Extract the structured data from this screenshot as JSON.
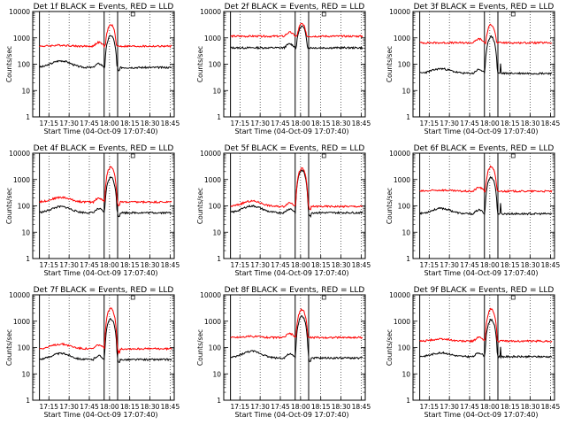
{
  "figure": {
    "xlabel": "Start Time (04-Oct-09 17:07:40)",
    "ylabel": "Counts/sec",
    "xticks": [
      "17:15",
      "17:30",
      "17:45",
      "18:00",
      "18:15",
      "18:30",
      "18:45"
    ],
    "yticks": [
      "1",
      "10",
      "100",
      "1000",
      "10000"
    ],
    "colors": {
      "events": "#000000",
      "lld": "#ff0000",
      "axes": "#000000",
      "background": "#ffffff"
    }
  },
  "chart_data": [
    {
      "type": "line",
      "title": "Det 1f BLACK = Events, RED = LLD",
      "xlabel": "Start Time (04-Oct-09 17:07:40)",
      "ylabel": "Counts/sec",
      "xlim_minutes": [
        -5,
        100
      ],
      "ylim": [
        1,
        10000
      ],
      "yscale": "log",
      "vertical_lines_minutes": [
        0,
        48,
        58
      ],
      "series": [
        {
          "name": "Events",
          "color": "#000000",
          "baseline": 75,
          "bump": 1.8,
          "peak": 1200,
          "post": "drop"
        },
        {
          "name": "LLD",
          "color": "#ff0000",
          "baseline": 480,
          "bump": 1.1,
          "peak": 3000,
          "post": "flat"
        }
      ]
    },
    {
      "type": "line",
      "title": "Det 2f BLACK = Events, RED = LLD",
      "xlabel": "Start Time (04-Oct-09 17:07:40)",
      "ylabel": "Counts/sec",
      "xlim_minutes": [
        -5,
        100
      ],
      "ylim": [
        1,
        10000
      ],
      "yscale": "log",
      "vertical_lines_minutes": [
        0,
        48,
        58
      ],
      "series": [
        {
          "name": "Events",
          "color": "#000000",
          "baseline": 420,
          "bump": 1.0,
          "peak": 2600,
          "post": "flat"
        },
        {
          "name": "LLD",
          "color": "#ff0000",
          "baseline": 1150,
          "bump": 1.0,
          "peak": 3100,
          "post": "flat"
        }
      ]
    },
    {
      "type": "line",
      "title": "Det 3f BLACK = Events, RED = LLD",
      "xlabel": "Start Time (04-Oct-09 17:07:40)",
      "ylabel": "Counts/sec",
      "xlim_minutes": [
        -5,
        100
      ],
      "ylim": [
        1,
        10000
      ],
      "yscale": "log",
      "vertical_lines_minutes": [
        0,
        48,
        58
      ],
      "series": [
        {
          "name": "Events",
          "color": "#000000",
          "baseline": 45,
          "bump": 1.5,
          "peak": 1100,
          "post": "spike"
        },
        {
          "name": "LLD",
          "color": "#ff0000",
          "baseline": 650,
          "bump": 1.0,
          "peak": 3000,
          "post": "flat"
        }
      ]
    },
    {
      "type": "line",
      "title": "Det 4f BLACK = Events, RED = LLD",
      "xlabel": "Start Time (04-Oct-09 17:07:40)",
      "ylabel": "Counts/sec",
      "xlim_minutes": [
        -5,
        100
      ],
      "ylim": [
        1,
        10000
      ],
      "yscale": "log",
      "vertical_lines_minutes": [
        0,
        48,
        58
      ],
      "series": [
        {
          "name": "Events",
          "color": "#000000",
          "baseline": 55,
          "bump": 1.7,
          "peak": 1200,
          "post": "drop"
        },
        {
          "name": "LLD",
          "color": "#ff0000",
          "baseline": 140,
          "bump": 1.5,
          "peak": 3000,
          "post": "drop"
        }
      ]
    },
    {
      "type": "line",
      "title": "Det 5f BLACK = Events, RED = LLD",
      "xlabel": "Start Time (04-Oct-09 17:07:40)",
      "ylabel": "Counts/sec",
      "xlim_minutes": [
        -5,
        100
      ],
      "ylim": [
        1,
        10000
      ],
      "yscale": "log",
      "vertical_lines_minutes": [
        0,
        48,
        58
      ],
      "series": [
        {
          "name": "Events",
          "color": "#000000",
          "baseline": 55,
          "bump": 1.8,
          "peak": 2200,
          "post": "drop"
        },
        {
          "name": "LLD",
          "color": "#ff0000",
          "baseline": 95,
          "bump": 1.6,
          "peak": 2600,
          "post": "drop"
        }
      ]
    },
    {
      "type": "line",
      "title": "Det 6f BLACK = Events, RED = LLD",
      "xlabel": "Start Time (04-Oct-09 17:07:40)",
      "ylabel": "Counts/sec",
      "xlim_minutes": [
        -5,
        100
      ],
      "ylim": [
        1,
        10000
      ],
      "yscale": "log",
      "vertical_lines_minutes": [
        0,
        48,
        58
      ],
      "series": [
        {
          "name": "Events",
          "color": "#000000",
          "baseline": 50,
          "bump": 1.6,
          "peak": 1200,
          "post": "spike"
        },
        {
          "name": "LLD",
          "color": "#ff0000",
          "baseline": 360,
          "bump": 1.1,
          "peak": 3000,
          "post": "flat"
        }
      ]
    },
    {
      "type": "line",
      "title": "Det 7f BLACK = Events, RED = LLD",
      "xlabel": "Start Time (04-Oct-09 17:07:40)",
      "ylabel": "Counts/sec",
      "xlim_minutes": [
        -5,
        100
      ],
      "ylim": [
        1,
        10000
      ],
      "yscale": "log",
      "vertical_lines_minutes": [
        0,
        48,
        58
      ],
      "series": [
        {
          "name": "Events",
          "color": "#000000",
          "baseline": 35,
          "bump": 1.7,
          "peak": 1200,
          "post": "drop"
        },
        {
          "name": "LLD",
          "color": "#ff0000",
          "baseline": 90,
          "bump": 1.5,
          "peak": 3000,
          "post": "drop"
        }
      ]
    },
    {
      "type": "line",
      "title": "Det 8f BLACK = Events, RED = LLD",
      "xlabel": "Start Time (04-Oct-09 17:07:40)",
      "ylabel": "Counts/sec",
      "xlim_minutes": [
        -5,
        100
      ],
      "ylim": [
        1,
        10000
      ],
      "yscale": "log",
      "vertical_lines_minutes": [
        0,
        48,
        58
      ],
      "series": [
        {
          "name": "Events",
          "color": "#000000",
          "baseline": 40,
          "bump": 1.8,
          "peak": 1500,
          "post": "drop"
        },
        {
          "name": "LLD",
          "color": "#ff0000",
          "baseline": 240,
          "bump": 1.1,
          "peak": 2700,
          "post": "flat"
        }
      ]
    },
    {
      "type": "line",
      "title": "Det 9f BLACK = Events, RED = LLD",
      "xlabel": "Start Time (04-Oct-09 17:07:40)",
      "ylabel": "Counts/sec",
      "xlim_minutes": [
        -5,
        100
      ],
      "ylim": [
        1,
        10000
      ],
      "yscale": "log",
      "vertical_lines_minutes": [
        0,
        48,
        58
      ],
      "series": [
        {
          "name": "Events",
          "color": "#000000",
          "baseline": 45,
          "bump": 1.4,
          "peak": 1100,
          "post": "spike"
        },
        {
          "name": "LLD",
          "color": "#ff0000",
          "baseline": 175,
          "bump": 1.2,
          "peak": 2800,
          "post": "flat"
        }
      ]
    }
  ]
}
